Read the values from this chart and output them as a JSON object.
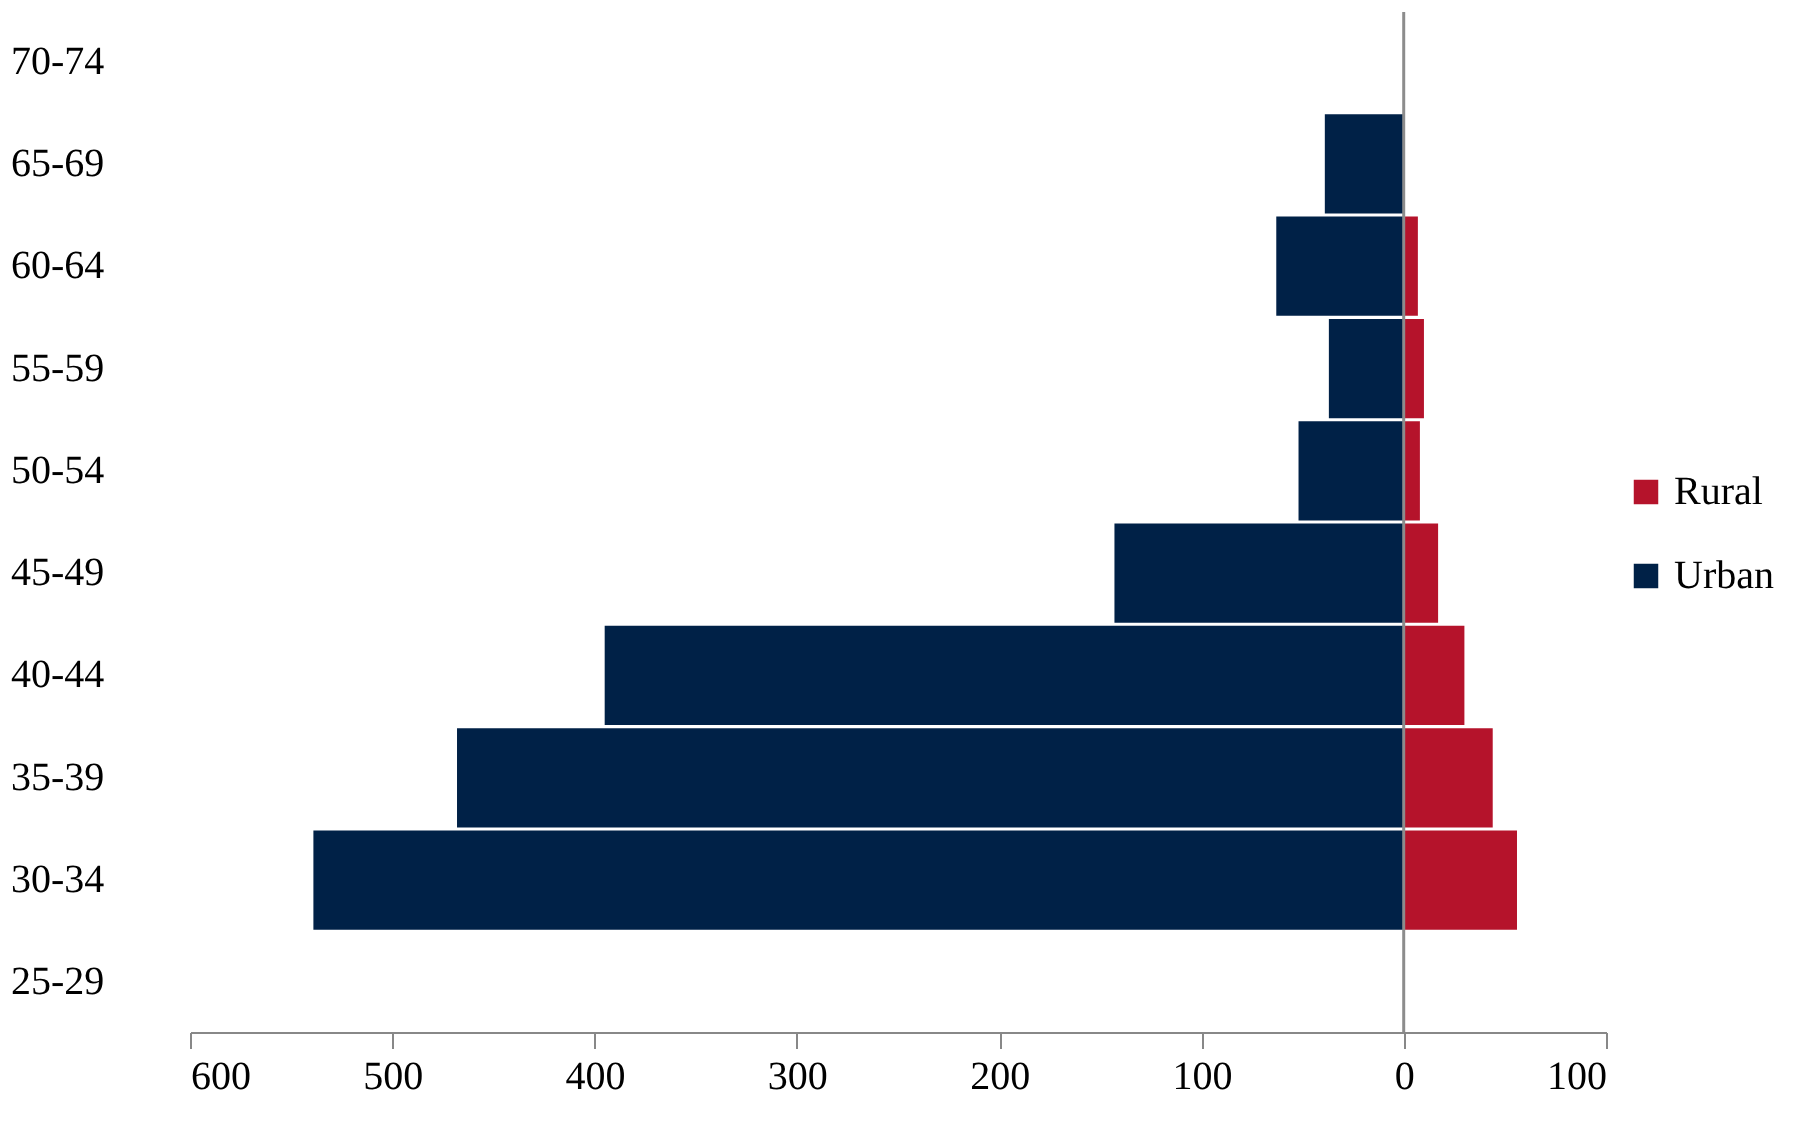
{
  "chart_data": {
    "type": "bar",
    "orientation": "horizontal",
    "categories": [
      "70-74",
      "65-69",
      "60-64",
      "55-59",
      "50-54",
      "45-49",
      "40-44",
      "35-39",
      "30-34",
      "25-29"
    ],
    "series": [
      {
        "name": "Rural",
        "color": "#b5132b",
        "values": [
          0,
          0,
          7,
          10,
          8,
          17,
          30,
          44,
          56,
          0
        ]
      },
      {
        "name": "Urban",
        "color": "#002147",
        "values": [
          0,
          -39,
          -63,
          -37,
          -52,
          -143,
          -395,
          -468,
          -539,
          0
        ]
      }
    ],
    "xlim": [
      -600,
      100
    ],
    "xticks": [
      {
        "value": -600,
        "label": "600"
      },
      {
        "value": -500,
        "label": "500"
      },
      {
        "value": -400,
        "label": "400"
      },
      {
        "value": -300,
        "label": "300"
      },
      {
        "value": -200,
        "label": "200"
      },
      {
        "value": -100,
        "label": "100"
      },
      0,
      100
    ],
    "ref_lines": [
      {
        "axis": "x",
        "value": 0,
        "color": "#8c8c8c"
      }
    ],
    "legend": "right",
    "grid": false,
    "stacked": true
  }
}
